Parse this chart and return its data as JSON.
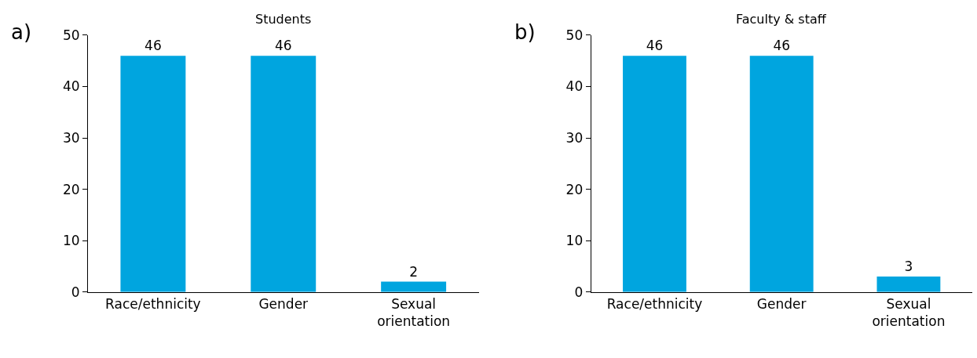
{
  "chart_data": [
    {
      "type": "bar",
      "title": "Students",
      "categories": [
        "Race/ethnicity",
        "Gender",
        "Sexual orientation"
      ],
      "values": [
        46,
        46,
        2
      ],
      "color": "#00a5df",
      "ylim": [
        0,
        50
      ],
      "yticks": [
        0,
        10,
        20,
        30,
        40,
        50
      ],
      "data_labels": true,
      "annotations": [
        "a)"
      ]
    },
    {
      "type": "bar",
      "title": "Faculty & staff",
      "categories": [
        "Race/ethnicity",
        "Gender",
        "Sexual orientation"
      ],
      "values": [
        46,
        46,
        3
      ],
      "color": "#00a5df",
      "ylim": [
        0,
        50
      ],
      "yticks": [
        0,
        10,
        20,
        30,
        40,
        50
      ],
      "data_labels": true,
      "annotations": [
        "b)"
      ]
    }
  ]
}
